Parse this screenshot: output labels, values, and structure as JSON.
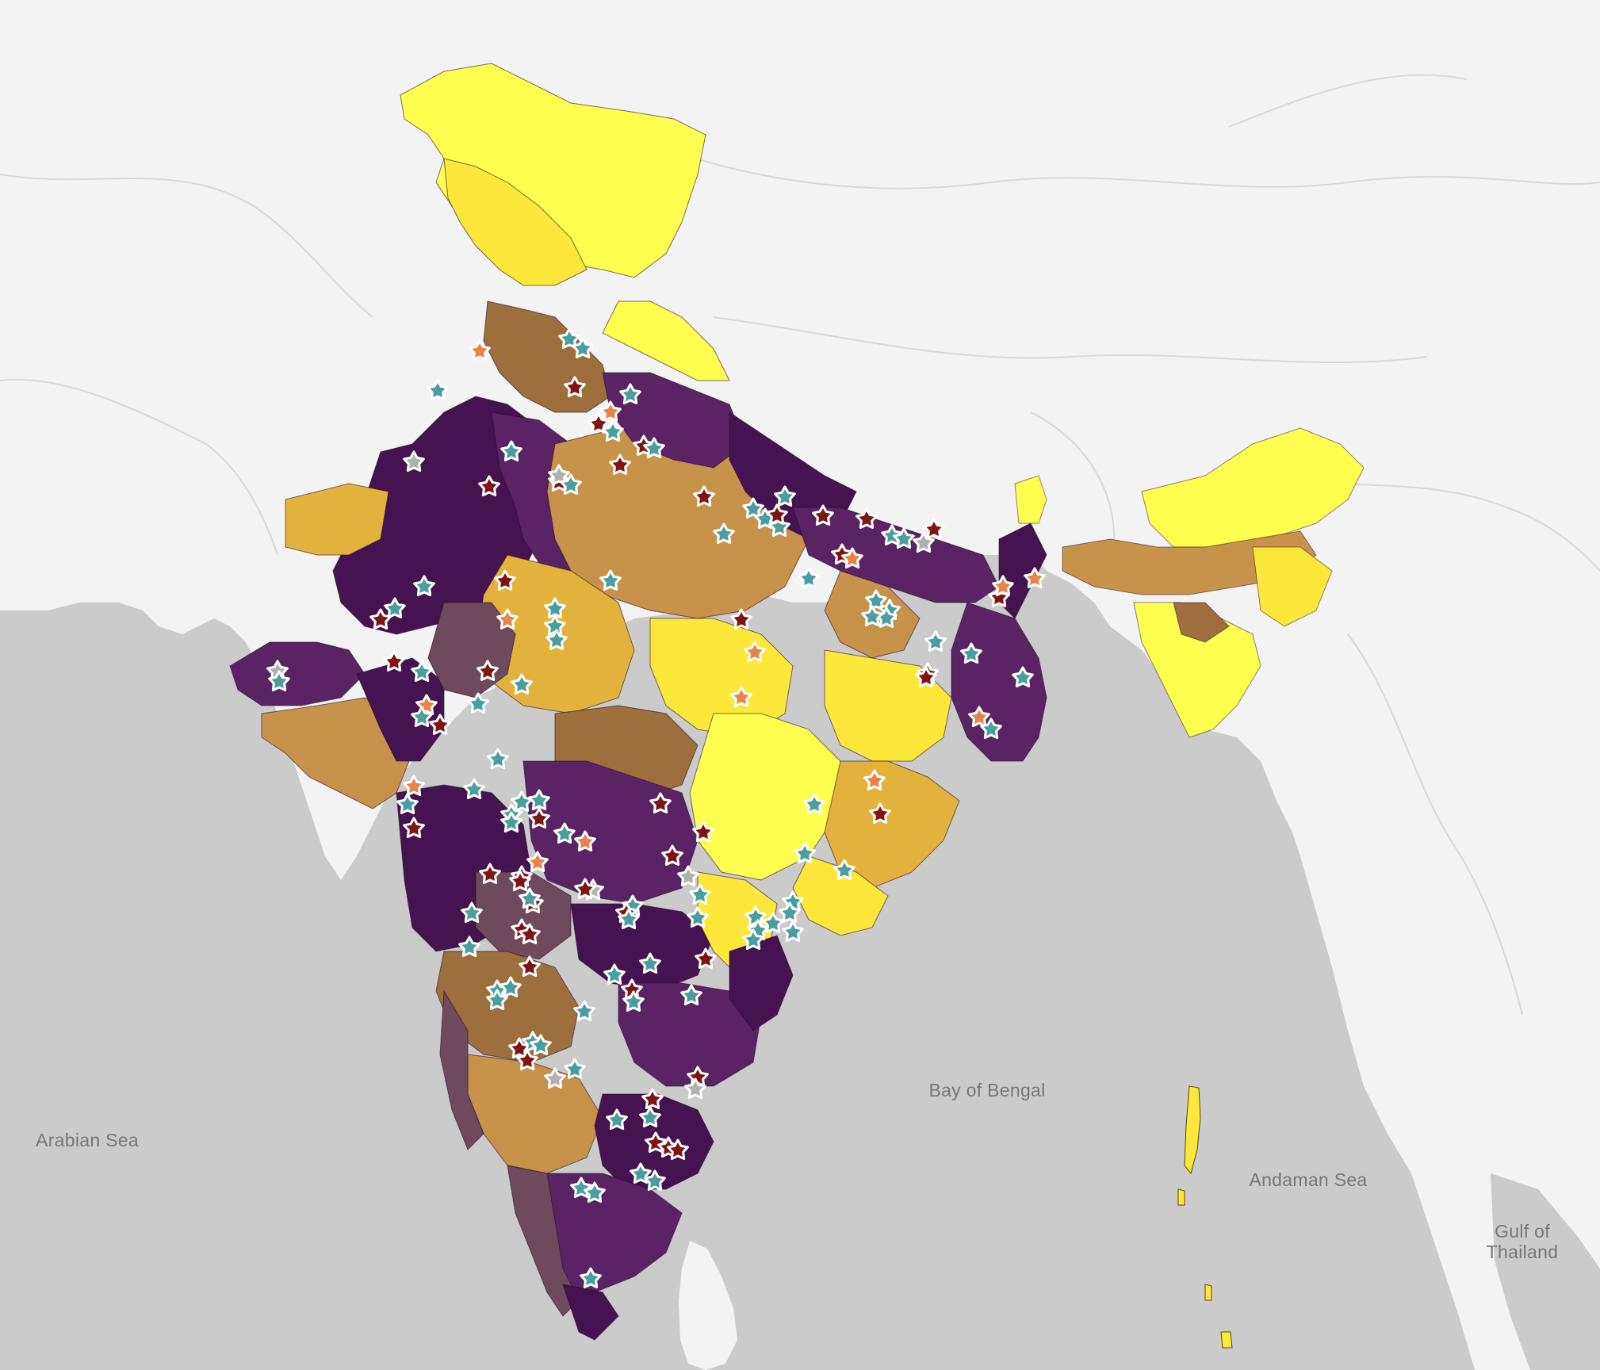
{
  "map": {
    "labels": {
      "arabian_sea": "Arabian Sea",
      "bay_of_bengal": "Bay of Bengal",
      "andaman_sea": "Andaman Sea",
      "gulf_of_thailand": "Gulf of\nThailand"
    },
    "colors": {
      "land": "#f3f3f3",
      "sea": "#cbcbcb",
      "district_dark_purple": "#45134f",
      "district_purple": "#5a2363",
      "district_mauve": "#6e4a5c",
      "district_brown": "#9c6f3d",
      "district_tan": "#c7924a",
      "district_gold": "#e3b23c",
      "district_yellow": "#fbe83a",
      "district_bright_yellow": "#ffff50",
      "marker_teal": "#4a9ea0",
      "marker_dark_red": "#7d1515",
      "marker_orange": "#e8844a",
      "marker_grey": "#b0b0b0"
    },
    "marker_icon": "star-flower-icon"
  }
}
